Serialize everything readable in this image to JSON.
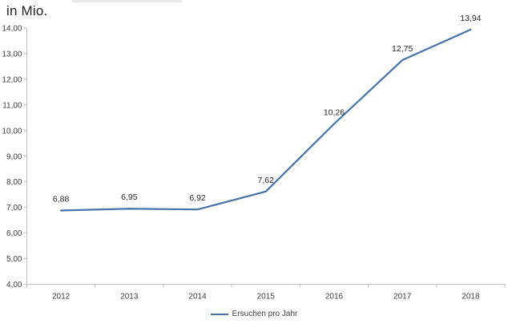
{
  "title": "in Mio.",
  "legend": {
    "label": "Ersuchen pro Jahr"
  },
  "colors": {
    "line": "#4673AA",
    "axis": "#BFBFBF",
    "tick_text": "#3F3F3F",
    "data_label_text": "#262626",
    "title_text": "#1F1F1F",
    "background": "#FFFFFF"
  },
  "chart_data": {
    "type": "line",
    "title": "in Mio.",
    "xlabel": "",
    "ylabel": "",
    "categories": [
      "2012",
      "2013",
      "2014",
      "2015",
      "2016",
      "2017",
      "2018"
    ],
    "series": [
      {
        "name": "Ersuchen pro Jahr",
        "values": [
          6.88,
          6.95,
          6.92,
          7.62,
          10.26,
          12.75,
          13.94
        ],
        "labels": [
          "6,88",
          "6,95",
          "6,92",
          "7,62",
          "10,26",
          "12,75",
          "13,94"
        ]
      }
    ],
    "ylim": [
      4,
      14
    ],
    "y_ticks": [
      {
        "value": 4,
        "label": "4,00"
      },
      {
        "value": 5,
        "label": "5,00"
      },
      {
        "value": 6,
        "label": "6,00"
      },
      {
        "value": 7,
        "label": "7,00"
      },
      {
        "value": 8,
        "label": "8,00"
      },
      {
        "value": 9,
        "label": "9,00"
      },
      {
        "value": 10,
        "label": "10,00"
      },
      {
        "value": 11,
        "label": "11,00"
      },
      {
        "value": 12,
        "label": "12,00"
      },
      {
        "value": 13,
        "label": "13,00"
      },
      {
        "value": 14,
        "label": "14,00"
      }
    ],
    "grid": false,
    "legend_position": "bottom"
  }
}
